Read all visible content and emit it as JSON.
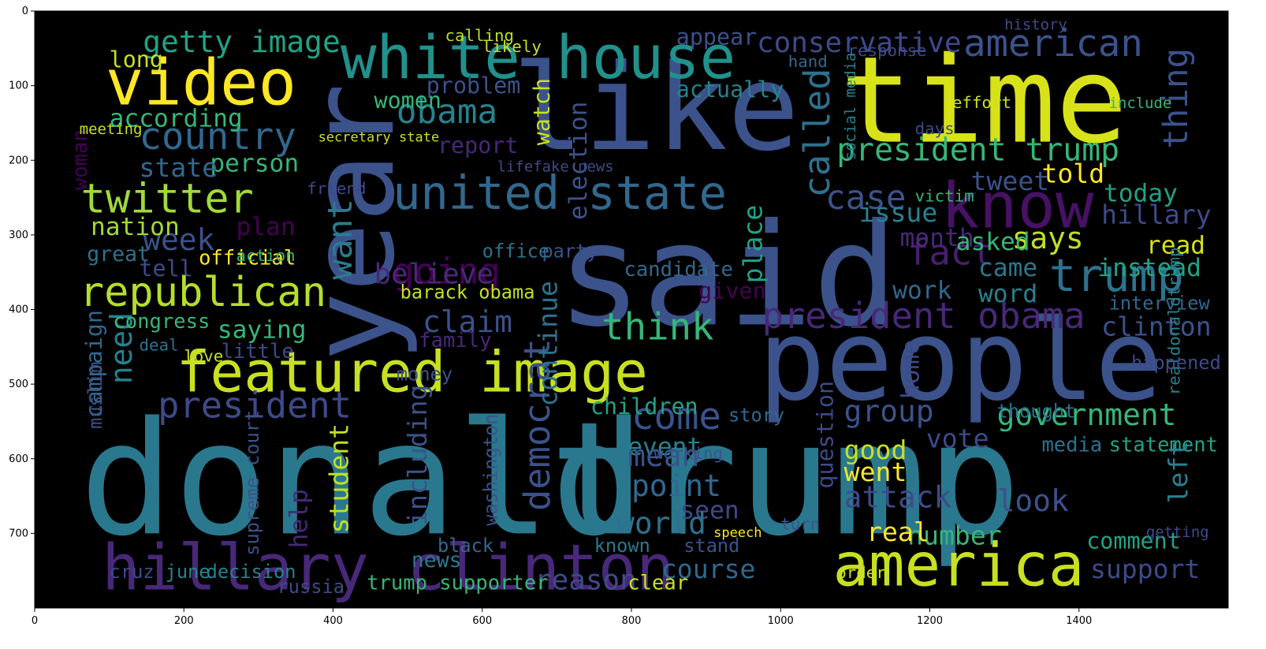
{
  "chart_data": {
    "type": "wordcloud",
    "background": "#000000",
    "colormap": "viridis",
    "grid": false,
    "xlim": [
      0,
      1600
    ],
    "ylim": [
      800,
      0
    ],
    "x_ticks": [
      0,
      200,
      400,
      600,
      800,
      1000,
      1200,
      1400
    ],
    "y_ticks": [
      0,
      100,
      200,
      300,
      400,
      500,
      600,
      700
    ],
    "words": [
      {
        "text": "donald",
        "x": 60,
        "y": 700,
        "size": 210,
        "color": "#2a788e"
      },
      {
        "text": "trump",
        "x": 690,
        "y": 700,
        "size": 210,
        "color": "#2a788e"
      },
      {
        "text": "said",
        "x": 700,
        "y": 420,
        "size": 190,
        "color": "#3b528b"
      },
      {
        "text": "people",
        "x": 970,
        "y": 520,
        "size": 150,
        "color": "#3b528b"
      },
      {
        "text": "time",
        "x": 1080,
        "y": 175,
        "size": 160,
        "color": "#d8e219"
      },
      {
        "text": "like",
        "x": 640,
        "y": 185,
        "size": 160,
        "color": "#3b528b"
      },
      {
        "text": "year",
        "x": 480,
        "y": 470,
        "size": 155,
        "color": "#3b528b",
        "rotate": -90
      },
      {
        "text": "white house",
        "x": 410,
        "y": 90,
        "size": 80,
        "color": "#21918c"
      },
      {
        "text": "video",
        "x": 95,
        "y": 125,
        "size": 85,
        "color": "#fde725"
      },
      {
        "text": "featured image",
        "x": 190,
        "y": 510,
        "size": 75,
        "color": "#c8e020"
      },
      {
        "text": "hillary clinton",
        "x": 90,
        "y": 775,
        "size": 85,
        "color": "#482878"
      },
      {
        "text": "america",
        "x": 1070,
        "y": 770,
        "size": 80,
        "color": "#c8e020"
      },
      {
        "text": "know",
        "x": 1215,
        "y": 290,
        "size": 85,
        "color": "#471164"
      },
      {
        "text": "united state",
        "x": 480,
        "y": 265,
        "size": 62,
        "color": "#31688e"
      },
      {
        "text": "president trump",
        "x": 1075,
        "y": 200,
        "size": 42,
        "color": "#35b779"
      },
      {
        "text": "republican",
        "x": 60,
        "y": 395,
        "size": 55,
        "color": "#b5de2b"
      },
      {
        "text": "twitter",
        "x": 62,
        "y": 270,
        "size": 55,
        "color": "#a0da39"
      },
      {
        "text": "obama",
        "x": 485,
        "y": 150,
        "size": 45,
        "color": "#26828e"
      },
      {
        "text": "country",
        "x": 140,
        "y": 185,
        "size": 50,
        "color": "#31688e"
      },
      {
        "text": "president",
        "x": 165,
        "y": 545,
        "size": 48,
        "color": "#3e4a89"
      },
      {
        "text": "american",
        "x": 1245,
        "y": 60,
        "size": 50,
        "color": "#3b528b"
      },
      {
        "text": "conservative",
        "x": 968,
        "y": 55,
        "size": 38,
        "color": "#3e4a89"
      },
      {
        "text": "getty image",
        "x": 145,
        "y": 55,
        "size": 40,
        "color": "#20a386"
      },
      {
        "text": "called",
        "x": 1065,
        "y": 250,
        "size": 48,
        "color": "#2c728e",
        "rotate": -90
      },
      {
        "text": "thing",
        "x": 1545,
        "y": 185,
        "size": 45,
        "color": "#3b528b",
        "rotate": -90
      },
      {
        "text": "think",
        "x": 760,
        "y": 440,
        "size": 50,
        "color": "#35b779"
      },
      {
        "text": "going",
        "x": 480,
        "y": 365,
        "size": 48,
        "color": "#440154"
      },
      {
        "text": "want",
        "x": 425,
        "y": 360,
        "size": 45,
        "color": "#287c8e",
        "rotate": -90
      },
      {
        "text": "case",
        "x": 1060,
        "y": 265,
        "size": 45,
        "color": "#3b528b"
      },
      {
        "text": "fact",
        "x": 1170,
        "y": 340,
        "size": 48,
        "color": "#481f70"
      },
      {
        "text": "trump",
        "x": 1360,
        "y": 375,
        "size": 60,
        "color": "#2c728e"
      },
      {
        "text": "says",
        "x": 1310,
        "y": 318,
        "size": 40,
        "color": "#c2df23"
      },
      {
        "text": "issue",
        "x": 1105,
        "y": 282,
        "size": 35,
        "color": "#26828e"
      },
      {
        "text": "tweet",
        "x": 1255,
        "y": 240,
        "size": 35,
        "color": "#3b528b"
      },
      {
        "text": "told",
        "x": 1350,
        "y": 230,
        "size": 35,
        "color": "#fde725"
      },
      {
        "text": "today",
        "x": 1433,
        "y": 255,
        "size": 33,
        "color": "#20a386"
      },
      {
        "text": "hillary",
        "x": 1430,
        "y": 285,
        "size": 35,
        "color": "#3e4a89"
      },
      {
        "text": "read",
        "x": 1490,
        "y": 325,
        "size": 33,
        "color": "#d8e219"
      },
      {
        "text": "instead",
        "x": 1425,
        "y": 355,
        "size": 33,
        "color": "#20a386"
      },
      {
        "text": "month",
        "x": 1160,
        "y": 315,
        "size": 33,
        "color": "#482878"
      },
      {
        "text": "asked",
        "x": 1235,
        "y": 320,
        "size": 33,
        "color": "#35b779"
      },
      {
        "text": "came",
        "x": 1265,
        "y": 355,
        "size": 33,
        "color": "#2a788e"
      },
      {
        "text": "work",
        "x": 1150,
        "y": 385,
        "size": 33,
        "color": "#31688e"
      },
      {
        "text": "word",
        "x": 1265,
        "y": 390,
        "size": 33,
        "color": "#26828e"
      },
      {
        "text": "president obama",
        "x": 975,
        "y": 425,
        "size": 48,
        "color": "#482878"
      },
      {
        "text": "clinton",
        "x": 1430,
        "y": 435,
        "size": 35,
        "color": "#3b528b"
      },
      {
        "text": "interview",
        "x": 1440,
        "y": 400,
        "size": 25,
        "color": "#31688e"
      },
      {
        "text": "realdonaldtrump",
        "x": 1535,
        "y": 515,
        "size": 22,
        "color": "#26828e",
        "rotate": -90
      },
      {
        "text": "government",
        "x": 1290,
        "y": 555,
        "size": 40,
        "color": "#35b779"
      },
      {
        "text": "statement",
        "x": 1440,
        "y": 590,
        "size": 27,
        "color": "#20a386"
      },
      {
        "text": "group",
        "x": 1085,
        "y": 550,
        "size": 40,
        "color": "#3b528b"
      },
      {
        "text": "vote",
        "x": 1195,
        "y": 585,
        "size": 35,
        "color": "#3e4a89"
      },
      {
        "text": "media",
        "x": 1350,
        "y": 590,
        "size": 27,
        "color": "#2c728e"
      },
      {
        "text": "left",
        "x": 1545,
        "y": 660,
        "size": 35,
        "color": "#26828e",
        "rotate": -90
      },
      {
        "text": "look",
        "x": 1290,
        "y": 670,
        "size": 40,
        "color": "#3b528b"
      },
      {
        "text": "comment",
        "x": 1410,
        "y": 720,
        "size": 30,
        "color": "#20a386"
      },
      {
        "text": "support",
        "x": 1415,
        "y": 760,
        "size": 35,
        "color": "#3e4a89"
      },
      {
        "text": "number",
        "x": 1170,
        "y": 715,
        "size": 35,
        "color": "#35b779"
      },
      {
        "text": "real",
        "x": 1115,
        "y": 710,
        "size": 35,
        "color": "#fde725"
      },
      {
        "text": "attack",
        "x": 1085,
        "y": 665,
        "size": 40,
        "color": "#3e4a89"
      },
      {
        "text": "went",
        "x": 1085,
        "y": 630,
        "size": 35,
        "color": "#fde725"
      },
      {
        "text": "good",
        "x": 1085,
        "y": 600,
        "size": 35,
        "color": "#c8e020"
      },
      {
        "text": "question",
        "x": 1070,
        "y": 640,
        "size": 30,
        "color": "#3e4a89",
        "rotate": -90
      },
      {
        "text": "come",
        "x": 800,
        "y": 560,
        "size": 50,
        "color": "#3b528b"
      },
      {
        "text": "democrat",
        "x": 690,
        "y": 670,
        "size": 48,
        "color": "#3b528b",
        "rotate": -90
      },
      {
        "text": "continue",
        "x": 700,
        "y": 530,
        "size": 35,
        "color": "#2c728e",
        "rotate": -90
      },
      {
        "text": "children",
        "x": 745,
        "y": 540,
        "size": 30,
        "color": "#20a386"
      },
      {
        "text": "event",
        "x": 795,
        "y": 595,
        "size": 33,
        "color": "#26828e"
      },
      {
        "text": "mean",
        "x": 795,
        "y": 610,
        "size": 40,
        "color": "#3b528b"
      },
      {
        "text": "point",
        "x": 800,
        "y": 650,
        "size": 40,
        "color": "#31688e"
      },
      {
        "text": "seen",
        "x": 865,
        "y": 680,
        "size": 33,
        "color": "#3e4a89"
      },
      {
        "text": "world",
        "x": 780,
        "y": 700,
        "size": 40,
        "color": "#2c728e"
      },
      {
        "text": "course",
        "x": 840,
        "y": 760,
        "size": 35,
        "color": "#31688e"
      },
      {
        "text": "reason",
        "x": 670,
        "y": 775,
        "size": 38,
        "color": "#3e4a89"
      },
      {
        "text": "including",
        "x": 525,
        "y": 690,
        "size": 35,
        "color": "#3b528b",
        "rotate": -90
      },
      {
        "text": "student",
        "x": 420,
        "y": 700,
        "size": 35,
        "color": "#c2df23",
        "rotate": -90
      },
      {
        "text": "help",
        "x": 365,
        "y": 720,
        "size": 33,
        "color": "#482878",
        "rotate": -90
      },
      {
        "text": "washington",
        "x": 620,
        "y": 690,
        "size": 25,
        "color": "#3b528b",
        "rotate": -90
      },
      {
        "text": "news",
        "x": 505,
        "y": 745,
        "size": 28,
        "color": "#2a788e"
      },
      {
        "text": "decision",
        "x": 230,
        "y": 760,
        "size": 25,
        "color": "#26828e"
      },
      {
        "text": "russia",
        "x": 325,
        "y": 780,
        "size": 25,
        "color": "#3e4a89"
      },
      {
        "text": "trump supporter",
        "x": 445,
        "y": 775,
        "size": 27,
        "color": "#35b779"
      },
      {
        "text": "clear",
        "x": 795,
        "y": 775,
        "size": 27,
        "color": "#c8e020"
      },
      {
        "text": "cruz",
        "x": 100,
        "y": 760,
        "size": 25,
        "color": "#3e4a89"
      },
      {
        "text": "june",
        "x": 175,
        "y": 760,
        "size": 25,
        "color": "#26828e"
      },
      {
        "text": "campaign",
        "x": 90,
        "y": 545,
        "size": 30,
        "color": "#31688e",
        "rotate": -90
      },
      {
        "text": "muslim",
        "x": 90,
        "y": 560,
        "size": 25,
        "color": "#3b528b",
        "rotate": -90
      },
      {
        "text": "need",
        "x": 130,
        "y": 500,
        "size": 40,
        "color": "#26828e",
        "rotate": -90
      },
      {
        "text": "saying",
        "x": 245,
        "y": 438,
        "size": 33,
        "color": "#35b779"
      },
      {
        "text": "week",
        "x": 145,
        "y": 320,
        "size": 40,
        "color": "#3b528b"
      },
      {
        "text": "nation",
        "x": 75,
        "y": 300,
        "size": 33,
        "color": "#a0da39"
      },
      {
        "text": "plan",
        "x": 270,
        "y": 300,
        "size": 33,
        "color": "#440154"
      },
      {
        "text": "great",
        "x": 70,
        "y": 335,
        "size": 28,
        "color": "#2c728e"
      },
      {
        "text": "tell",
        "x": 140,
        "y": 355,
        "size": 30,
        "color": "#3e4a89"
      },
      {
        "text": "official",
        "x": 220,
        "y": 340,
        "size": 27,
        "color": "#fde725"
      },
      {
        "text": "person",
        "x": 235,
        "y": 215,
        "size": 33,
        "color": "#35b779"
      },
      {
        "text": "state",
        "x": 140,
        "y": 222,
        "size": 35,
        "color": "#31688e"
      },
      {
        "text": "according",
        "x": 100,
        "y": 155,
        "size": 33,
        "color": "#35b779"
      },
      {
        "text": "women",
        "x": 455,
        "y": 130,
        "size": 30,
        "color": "#35b779"
      },
      {
        "text": "long",
        "x": 100,
        "y": 75,
        "size": 30,
        "color": "#c8e020"
      },
      {
        "text": "woman",
        "x": 70,
        "y": 240,
        "size": 27,
        "color": "#440154",
        "rotate": -90
      },
      {
        "text": "problem",
        "x": 525,
        "y": 110,
        "size": 30,
        "color": "#3b528b"
      },
      {
        "text": "report",
        "x": 540,
        "y": 190,
        "size": 30,
        "color": "#482878"
      },
      {
        "text": "watch",
        "x": 690,
        "y": 180,
        "size": 30,
        "color": "#c8e020",
        "rotate": -90
      },
      {
        "text": "actually",
        "x": 860,
        "y": 115,
        "size": 30,
        "color": "#26828e"
      },
      {
        "text": "appear",
        "x": 860,
        "y": 45,
        "size": 30,
        "color": "#3b528b"
      },
      {
        "text": "election",
        "x": 740,
        "y": 280,
        "size": 33,
        "color": "#3b528b",
        "rotate": -90
      },
      {
        "text": "believe",
        "x": 455,
        "y": 365,
        "size": 38,
        "color": "#482878"
      },
      {
        "text": "claim",
        "x": 520,
        "y": 430,
        "size": 40,
        "color": "#3b528b"
      },
      {
        "text": "barack obama",
        "x": 490,
        "y": 385,
        "size": 25,
        "color": "#c2df23"
      },
      {
        "text": "candidate",
        "x": 790,
        "y": 355,
        "size": 27,
        "color": "#31688e"
      },
      {
        "text": "place",
        "x": 975,
        "y": 365,
        "size": 35,
        "color": "#20a386",
        "rotate": -90
      },
      {
        "text": "given",
        "x": 890,
        "y": 385,
        "size": 30,
        "color": "#440154"
      },
      {
        "text": "home",
        "x": 1185,
        "y": 520,
        "size": 33,
        "color": "#3e4a89",
        "rotate": -90
      },
      {
        "text": "family",
        "x": 515,
        "y": 450,
        "size": 27,
        "color": "#482878"
      },
      {
        "text": "money",
        "x": 485,
        "y": 495,
        "size": 25,
        "color": "#3b528b"
      },
      {
        "text": "congress",
        "x": 105,
        "y": 425,
        "size": 27,
        "color": "#35b779"
      },
      {
        "text": "little",
        "x": 250,
        "y": 465,
        "size": 27,
        "color": "#3e4a89"
      },
      {
        "text": "party",
        "x": 680,
        "y": 330,
        "size": 25,
        "color": "#3b528b"
      },
      {
        "text": "office",
        "x": 600,
        "y": 330,
        "size": 25,
        "color": "#2c728e"
      },
      {
        "text": "story",
        "x": 930,
        "y": 550,
        "size": 25,
        "color": "#31688e"
      },
      {
        "text": "thought",
        "x": 1290,
        "y": 545,
        "size": 25,
        "color": "#2c728e"
      },
      {
        "text": "happened",
        "x": 1470,
        "y": 480,
        "size": 25,
        "color": "#3e4a89"
      },
      {
        "text": "black",
        "x": 540,
        "y": 725,
        "size": 25,
        "color": "#31688e"
      },
      {
        "text": "stand",
        "x": 870,
        "y": 725,
        "size": 25,
        "color": "#3b528b"
      },
      {
        "text": "known",
        "x": 750,
        "y": 725,
        "size": 25,
        "color": "#2a788e"
      },
      {
        "text": "speech",
        "x": 910,
        "y": 705,
        "size": 18,
        "color": "#fde725"
      },
      {
        "text": "love",
        "x": 200,
        "y": 470,
        "size": 22,
        "color": "#c8e020"
      },
      {
        "text": "deal",
        "x": 140,
        "y": 455,
        "size": 22,
        "color": "#2c728e"
      },
      {
        "text": "supreme court",
        "x": 300,
        "y": 730,
        "size": 25,
        "color": "#3b528b",
        "rotate": -90
      },
      {
        "text": "lifefake news",
        "x": 620,
        "y": 215,
        "size": 20,
        "color": "#3e4a89"
      },
      {
        "text": "hand",
        "x": 1010,
        "y": 75,
        "size": 22,
        "color": "#31688e"
      },
      {
        "text": "response",
        "x": 1090,
        "y": 60,
        "size": 22,
        "color": "#3e4a89"
      },
      {
        "text": "social media",
        "x": 1100,
        "y": 200,
        "size": 20,
        "color": "#26828e",
        "rotate": -90
      },
      {
        "text": "history",
        "x": 1300,
        "y": 25,
        "size": 20,
        "color": "#3e4a89"
      },
      {
        "text": "calling",
        "x": 550,
        "y": 40,
        "size": 22,
        "color": "#b5de2b"
      },
      {
        "text": "likely",
        "x": 600,
        "y": 55,
        "size": 22,
        "color": "#c8e020"
      },
      {
        "text": "meeting",
        "x": 60,
        "y": 165,
        "size": 20,
        "color": "#c8e020"
      },
      {
        "text": "friend",
        "x": 365,
        "y": 245,
        "size": 22,
        "color": "#3e4a89"
      },
      {
        "text": "secretary state",
        "x": 380,
        "y": 175,
        "size": 18,
        "color": "#c8e020"
      },
      {
        "text": "action",
        "x": 270,
        "y": 335,
        "size": 22,
        "color": "#35b779"
      },
      {
        "text": "victim",
        "x": 1180,
        "y": 255,
        "size": 22,
        "color": "#35b779"
      },
      {
        "text": "days",
        "x": 1180,
        "y": 165,
        "size": 22,
        "color": "#3e4a89"
      },
      {
        "text": "effort",
        "x": 1230,
        "y": 130,
        "size": 22,
        "color": "#c8e020"
      },
      {
        "text": "include",
        "x": 1440,
        "y": 130,
        "size": 20,
        "color": "#35b779"
      },
      {
        "text": "working",
        "x": 830,
        "y": 600,
        "size": 22,
        "color": "#3b528b"
      },
      {
        "text": "turn",
        "x": 1000,
        "y": 695,
        "size": 22,
        "color": "#3b528b"
      },
      {
        "text": "order",
        "x": 1075,
        "y": 760,
        "size": 22,
        "color": "#c8e020"
      },
      {
        "text": "getting",
        "x": 1490,
        "y": 705,
        "size": 20,
        "color": "#3e4a89"
      }
    ]
  }
}
